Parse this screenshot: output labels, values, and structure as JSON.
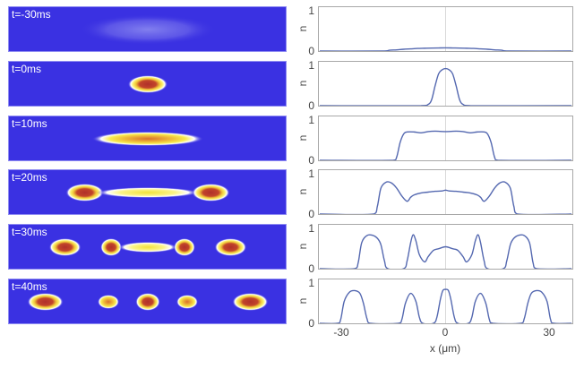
{
  "chart_data": {
    "type": "line",
    "xlabel": "x (μm)",
    "ylabel": "n",
    "xlim": [
      -36.5,
      36.5
    ],
    "ylim": [
      0,
      1.1
    ],
    "xticks": [
      "-30",
      "0",
      "30"
    ],
    "yticks": [
      "0",
      "1"
    ],
    "line_color": "#5468b0",
    "image_background": "#3a31e2",
    "panels": [
      {
        "label": "t=-30ms",
        "blobs": [
          {
            "x": 0,
            "length": 32,
            "intensity": 0.08
          }
        ],
        "profile": {
          "x": [
            -36,
            -18,
            -16,
            -14,
            -12,
            -10,
            -8,
            -6,
            -4,
            -2,
            0,
            2,
            4,
            6,
            8,
            10,
            12,
            14,
            16,
            18,
            36
          ],
          "y": [
            0,
            0,
            0.02,
            0.03,
            0.045,
            0.055,
            0.065,
            0.07,
            0.075,
            0.078,
            0.08,
            0.078,
            0.075,
            0.07,
            0.065,
            0.055,
            0.045,
            0.03,
            0.02,
            0,
            0
          ]
        }
      },
      {
        "label": "t=0ms",
        "blobs": [
          {
            "x": 0,
            "length": 8.5,
            "intensity": 0.95
          }
        ],
        "profile": {
          "x": [
            -36,
            -7,
            -5,
            -4,
            -3,
            -2,
            -1,
            0,
            1,
            2,
            3,
            4,
            5,
            7,
            36
          ],
          "y": [
            0,
            0,
            0.03,
            0.15,
            0.5,
            0.8,
            0.9,
            0.93,
            0.9,
            0.8,
            0.5,
            0.15,
            0.03,
            0,
            0
          ]
        }
      },
      {
        "label": "t=10ms",
        "blobs": [
          {
            "x": 0,
            "length": 27,
            "intensity": 0.72
          }
        ],
        "profile": {
          "x": [
            -36,
            -15,
            -14,
            -13,
            -12,
            -11,
            -9,
            -7,
            -5,
            -3,
            0,
            3,
            5,
            7,
            9,
            11,
            12,
            13,
            14,
            15,
            36
          ],
          "y": [
            0,
            0,
            0.08,
            0.45,
            0.66,
            0.71,
            0.71,
            0.69,
            0.72,
            0.73,
            0.72,
            0.73,
            0.72,
            0.69,
            0.71,
            0.71,
            0.66,
            0.45,
            0.08,
            0,
            0
          ]
        }
      },
      {
        "label": "t=20ms",
        "blobs": [
          {
            "x": -16,
            "length": 8,
            "intensity": 0.8
          },
          {
            "x": 0,
            "length": 25,
            "intensity": 0.55
          },
          {
            "x": 16,
            "length": 8,
            "intensity": 0.8
          }
        ],
        "profile": {
          "x": [
            -36,
            -20.5,
            -19.5,
            -18.5,
            -17,
            -15.5,
            -14,
            -12.5,
            -11,
            -10,
            -9,
            -7,
            -5,
            -3,
            -1,
            0,
            1,
            3,
            5,
            7,
            9,
            10,
            11,
            12.5,
            14,
            15.5,
            17,
            18.5,
            19.5,
            20.5,
            36
          ],
          "y": [
            0,
            0,
            0.2,
            0.65,
            0.8,
            0.78,
            0.65,
            0.45,
            0.32,
            0.42,
            0.48,
            0.53,
            0.55,
            0.57,
            0.58,
            0.6,
            0.58,
            0.57,
            0.55,
            0.53,
            0.48,
            0.42,
            0.32,
            0.45,
            0.65,
            0.78,
            0.8,
            0.65,
            0.2,
            0,
            0
          ]
        }
      },
      {
        "label": "t=30ms",
        "blobs": [
          {
            "x": -21,
            "length": 6.5,
            "intensity": 0.85
          },
          {
            "x": -9.3,
            "length": 3.8,
            "intensity": 0.85
          },
          {
            "x": 0,
            "length": 14,
            "intensity": 0.5
          },
          {
            "x": 9.3,
            "length": 3.8,
            "intensity": 0.85
          },
          {
            "x": 21,
            "length": 6.5,
            "intensity": 0.85
          }
        ],
        "profile": {
          "x": [
            -36,
            -26,
            -25,
            -24,
            -22.5,
            -21,
            -19.5,
            -18.5,
            -17.5,
            -16.5,
            -12,
            -11,
            -10,
            -9.3,
            -8.5,
            -7.5,
            -6,
            -5,
            -3.5,
            -2,
            0,
            2,
            3.5,
            5,
            6,
            7.5,
            8.5,
            9.3,
            10,
            11,
            12,
            16.5,
            17.5,
            18.5,
            19.5,
            21,
            22.5,
            24,
            25,
            26,
            36
          ],
          "y": [
            0,
            0,
            0.15,
            0.65,
            0.83,
            0.84,
            0.76,
            0.6,
            0.2,
            0,
            0,
            0.2,
            0.65,
            0.85,
            0.7,
            0.35,
            0.17,
            0.3,
            0.46,
            0.5,
            0.55,
            0.5,
            0.46,
            0.3,
            0.17,
            0.35,
            0.7,
            0.85,
            0.65,
            0.2,
            0,
            0,
            0.2,
            0.6,
            0.76,
            0.84,
            0.83,
            0.65,
            0.15,
            0,
            0
          ]
        }
      },
      {
        "label": "t=40ms",
        "blobs": [
          {
            "x": -26,
            "length": 7.5,
            "intensity": 0.82
          },
          {
            "x": -10,
            "length": 4.2,
            "intensity": 0.75
          },
          {
            "x": 0,
            "length": 4.6,
            "intensity": 0.85
          },
          {
            "x": 10,
            "length": 4.2,
            "intensity": 0.75
          },
          {
            "x": 26,
            "length": 7.5,
            "intensity": 0.82
          }
        ],
        "profile": {
          "x": [
            -36,
            -31,
            -30,
            -29,
            -27.5,
            -26,
            -24.5,
            -23.5,
            -22.5,
            -21.5,
            -13.5,
            -12.5,
            -11.5,
            -10,
            -8.5,
            -7.5,
            -6.5,
            -3.5,
            -2.5,
            -1.5,
            -0.8,
            0,
            0.8,
            1.5,
            2.5,
            3.5,
            6.5,
            7.5,
            8.5,
            10,
            11.5,
            12.5,
            13.5,
            21.5,
            22.5,
            23.5,
            24.5,
            26,
            27.5,
            29,
            30,
            31,
            36
          ],
          "y": [
            0,
            0,
            0.1,
            0.55,
            0.78,
            0.82,
            0.75,
            0.5,
            0.12,
            0,
            0,
            0.1,
            0.5,
            0.75,
            0.55,
            0.15,
            0,
            0,
            0.15,
            0.6,
            0.82,
            0.85,
            0.82,
            0.6,
            0.15,
            0,
            0,
            0.15,
            0.55,
            0.75,
            0.5,
            0.1,
            0,
            0,
            0.12,
            0.5,
            0.75,
            0.82,
            0.78,
            0.55,
            0.1,
            0,
            0
          ]
        }
      }
    ]
  }
}
